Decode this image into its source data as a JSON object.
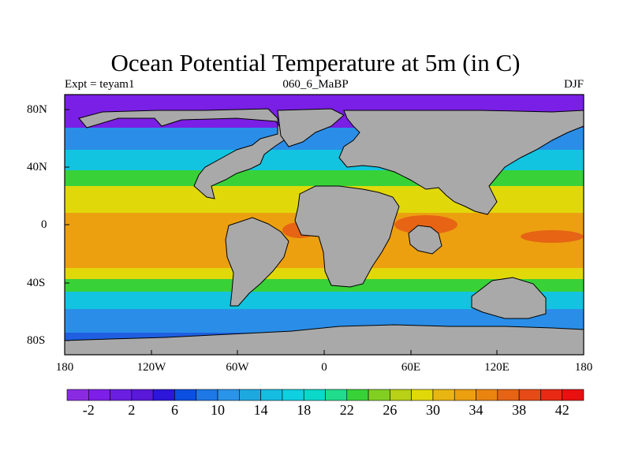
{
  "title": "Ocean Potential Temperature at 5m (in C)",
  "left_label": "Expt = teyam1",
  "center_label": "060_6_MaBP",
  "right_label": "DJF",
  "lat_ticks": [
    "80N",
    "40N",
    "0",
    "40S",
    "80S"
  ],
  "lon_ticks": [
    "180",
    "120W",
    "60W",
    "0",
    "60E",
    "120E",
    "180"
  ],
  "colorbar": {
    "tick_labels": [
      "-2",
      "2",
      "6",
      "10",
      "14",
      "18",
      "22",
      "26",
      "30",
      "34",
      "38",
      "42"
    ],
    "colors": [
      "#8a2be2",
      "#7d1fe8",
      "#6a1fe0",
      "#5a18d8",
      "#2c16d8",
      "#0a4fe0",
      "#1e78e6",
      "#2a94e8",
      "#1ea8e0",
      "#16bde0",
      "#10cfe0",
      "#0ad8c8",
      "#20dc8c",
      "#38d238",
      "#82cf22",
      "#b8d016",
      "#e1d80a",
      "#e8b612",
      "#eca010",
      "#ea8410",
      "#e66414",
      "#e64a16",
      "#e82a14",
      "#ea1010"
    ]
  },
  "map_colors": {
    "land": "#a9a9a9",
    "polar_sea": "#7a1fe6",
    "cold_sea": "#2a8ee8",
    "cool_sea": "#12c4e0",
    "mild_sea": "#38d238",
    "warm_sea": "#e1d80a",
    "hot_sea": "#eca010",
    "very_hot_sea": "#e66414"
  }
}
